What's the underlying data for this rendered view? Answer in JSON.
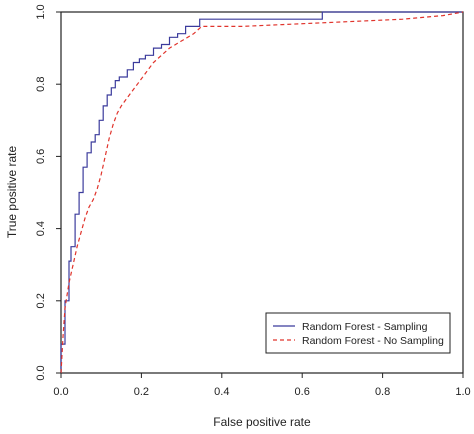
{
  "chart_data": {
    "type": "line",
    "title": "",
    "xlabel": "False positive rate",
    "ylabel": "True positive rate",
    "xlim": [
      0,
      1
    ],
    "ylim": [
      0,
      1
    ],
    "xticks": [
      "0.0",
      "0.2",
      "0.4",
      "0.6",
      "0.8",
      "1.0"
    ],
    "yticks": [
      "0.0",
      "0.2",
      "0.4",
      "0.6",
      "0.8",
      "1.0"
    ],
    "grid": false,
    "legend_position": "bottom-right",
    "series": [
      {
        "name": "Random Forest - Sampling",
        "color": "#3b3b9c",
        "style": "solid",
        "x": [
          0.0,
          0.0,
          0.01,
          0.01,
          0.02,
          0.02,
          0.025,
          0.025,
          0.035,
          0.035,
          0.045,
          0.045,
          0.055,
          0.055,
          0.065,
          0.065,
          0.075,
          0.075,
          0.085,
          0.085,
          0.095,
          0.095,
          0.105,
          0.105,
          0.115,
          0.115,
          0.125,
          0.125,
          0.135,
          0.135,
          0.145,
          0.145,
          0.165,
          0.165,
          0.18,
          0.18,
          0.195,
          0.195,
          0.21,
          0.21,
          0.23,
          0.23,
          0.25,
          0.25,
          0.27,
          0.27,
          0.29,
          0.29,
          0.31,
          0.31,
          0.345,
          0.345,
          0.65,
          0.65,
          1.0
        ],
        "y": [
          0.0,
          0.08,
          0.08,
          0.2,
          0.2,
          0.31,
          0.31,
          0.35,
          0.35,
          0.44,
          0.44,
          0.5,
          0.5,
          0.57,
          0.57,
          0.61,
          0.61,
          0.64,
          0.64,
          0.66,
          0.66,
          0.7,
          0.7,
          0.74,
          0.74,
          0.77,
          0.77,
          0.79,
          0.79,
          0.81,
          0.81,
          0.82,
          0.82,
          0.84,
          0.84,
          0.86,
          0.86,
          0.87,
          0.87,
          0.88,
          0.88,
          0.9,
          0.9,
          0.91,
          0.91,
          0.93,
          0.93,
          0.94,
          0.94,
          0.96,
          0.96,
          0.98,
          0.98,
          1.0,
          1.0
        ]
      },
      {
        "name": "Random Forest - No Sampling",
        "color": "#e0342c",
        "style": "dashed",
        "x": [
          0.0,
          0.005,
          0.01,
          0.02,
          0.03,
          0.04,
          0.05,
          0.06,
          0.07,
          0.08,
          0.09,
          0.1,
          0.11,
          0.12,
          0.13,
          0.14,
          0.15,
          0.17,
          0.19,
          0.21,
          0.23,
          0.25,
          0.27,
          0.3,
          0.33,
          0.35,
          0.45,
          0.55,
          0.65,
          0.75,
          0.85,
          0.95,
          1.0
        ],
        "y": [
          0.0,
          0.1,
          0.18,
          0.25,
          0.3,
          0.35,
          0.39,
          0.43,
          0.46,
          0.48,
          0.51,
          0.55,
          0.6,
          0.65,
          0.69,
          0.72,
          0.74,
          0.77,
          0.8,
          0.83,
          0.86,
          0.88,
          0.9,
          0.92,
          0.94,
          0.96,
          0.96,
          0.965,
          0.97,
          0.975,
          0.98,
          0.99,
          1.0
        ]
      }
    ]
  }
}
